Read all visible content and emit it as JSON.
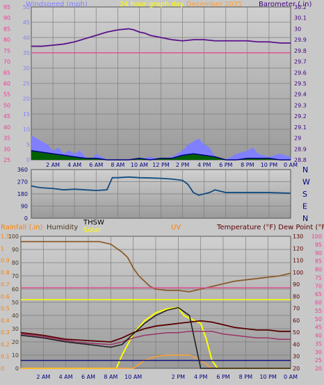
{
  "header": {
    "wind_title": "Windspeed (mph)",
    "period_title": "24 hour graph day",
    "date_title": "December 2025",
    "baro_title": "Barometer (.in)"
  },
  "colors": {
    "background": "#c8c8c8",
    "plot_top": "#d0d0d0",
    "plot_bottom": "#9a9a9a",
    "grid": "#7d7d7d",
    "pink_axis": "#ff3399",
    "purple_axis": "#400080",
    "navy_axis": "#000080",
    "orange_axis": "#ff8000",
    "yellow_label": "#ffff00",
    "wind_speed": "#8080ff",
    "wind_gust_fill": "#006000",
    "wind_avg": "#000080",
    "barometer": "#5a108a",
    "wind_dir": "#104a80",
    "humidity": "#8b5a2b",
    "temperature": "#5a0000",
    "dew_point": "#993366",
    "solar": "#ffff00",
    "uv": "#ffa030",
    "thsw": "#1a1a1a",
    "rain": "#101080",
    "flat_pink": "#e05090"
  },
  "chart_data": [
    {
      "type": "line",
      "name": "wind-barometer",
      "x_ticks": [
        "2 AM",
        "4 AM",
        "6 AM",
        "8 AM",
        "10 AM",
        "12 PM",
        "2 PM",
        "4 PM",
        "6 PM",
        "8 PM",
        "10 PM",
        "0 AM"
      ],
      "left_axis_label": "Windspeed (mph)",
      "left_ticks_mph": [
        "50",
        "45",
        "40",
        "35",
        "30",
        "25",
        "20",
        "15",
        "10",
        "5",
        "0"
      ],
      "left_ticks_kmh": [
        "95",
        "90",
        "85",
        "80",
        "75",
        "70",
        "65",
        "60",
        "55",
        "50",
        "45",
        "40",
        "35",
        "30",
        "25"
      ],
      "ylim_wind": [
        0,
        50
      ],
      "right_axis_label": "Barometer (.in)",
      "right_ticks": [
        "30.2",
        "30.1",
        "30",
        "29.9",
        "29.8",
        "29.7",
        "29.6",
        "29.5",
        "29.4",
        "29.3",
        "29.2",
        "29.1",
        "29",
        "28.9",
        "28.8"
      ],
      "ylim_baro": [
        28.8,
        30.2
      ],
      "series": [
        {
          "key": "barometer",
          "axis": "right",
          "x": [
            0,
            1,
            2,
            3,
            4,
            5,
            6,
            7,
            8,
            9,
            9.5,
            10,
            10.5,
            11,
            12,
            13,
            14,
            15,
            16,
            17,
            18,
            19,
            20,
            21,
            22,
            23,
            24
          ],
          "y": [
            29.84,
            29.84,
            29.85,
            29.86,
            29.88,
            29.91,
            29.94,
            29.97,
            29.99,
            30.0,
            29.99,
            29.97,
            29.96,
            29.94,
            29.92,
            29.9,
            29.89,
            29.9,
            29.9,
            29.89,
            29.89,
            29.89,
            29.89,
            29.88,
            29.88,
            29.87,
            29.87
          ]
        },
        {
          "key": "flat_pink",
          "axis": "right",
          "x": [
            0,
            24
          ],
          "y": [
            29.78,
            29.78
          ]
        },
        {
          "key": "wind_speed",
          "axis": "left",
          "x": [
            0,
            0.5,
            1,
            1.5,
            2,
            2.5,
            3,
            3.5,
            4,
            4.5,
            5,
            5.5,
            6,
            6.5,
            7,
            8,
            9,
            10,
            11,
            12,
            13,
            14,
            14.5,
            15,
            15.5,
            16,
            16.5,
            17,
            18,
            19,
            20,
            20.5,
            21,
            22,
            23,
            24
          ],
          "y": [
            8,
            7,
            6,
            5,
            3,
            4,
            2,
            3,
            2,
            3,
            1,
            0,
            2,
            1,
            0,
            0,
            0,
            0,
            1,
            0,
            1,
            3,
            5,
            6,
            7,
            5,
            4,
            1,
            0,
            2,
            3,
            4,
            2,
            1,
            2,
            1
          ]
        },
        {
          "key": "wind_avg",
          "axis": "left",
          "x": [
            0,
            1,
            2,
            3,
            4,
            5,
            6,
            7,
            8,
            9,
            10,
            11,
            12,
            13,
            14,
            15,
            16,
            17,
            18,
            19,
            20,
            21,
            22,
            23,
            24
          ],
          "y": [
            3,
            2.5,
            2,
            1.5,
            1,
            0.5,
            0.5,
            0,
            0,
            0,
            0.5,
            0,
            0.5,
            0.5,
            1.5,
            2,
            1.5,
            1,
            0,
            0,
            0.5,
            0.5,
            0.5,
            0,
            0
          ]
        }
      ]
    },
    {
      "type": "line",
      "name": "wind-direction",
      "left_ticks": [
        "360",
        "270",
        "180",
        "90",
        "0"
      ],
      "ylim": [
        0,
        360
      ],
      "right_ticks": [
        "N",
        "W",
        "S",
        "E",
        "N"
      ],
      "x_ticks": [],
      "series": [
        {
          "key": "wind_dir",
          "x": [
            0,
            0.5,
            1,
            2,
            3,
            4,
            5,
            6,
            7,
            7.5,
            8,
            9,
            10,
            11,
            12,
            13,
            14,
            14.5,
            15,
            15.5,
            16,
            16.5,
            17,
            17.5,
            18,
            20,
            22,
            24
          ],
          "y": [
            240,
            230,
            225,
            220,
            210,
            215,
            210,
            205,
            210,
            300,
            300,
            305,
            300,
            298,
            295,
            290,
            280,
            250,
            190,
            170,
            180,
            190,
            210,
            200,
            190,
            190,
            190,
            185
          ]
        }
      ]
    },
    {
      "type": "line",
      "name": "weather-lower",
      "labels": {
        "rain": "Rainfall (.in)",
        "humidity": "Humidity",
        "thsw": "THSW",
        "solar": "Solar",
        "uv": "UV",
        "temp": "Temperature (°F) Dew Point (°F)"
      },
      "x_ticks": [
        "2 AM",
        "4 AM",
        "6 AM",
        "8 AM",
        "10 AM",
        "2 PM",
        "4 PM",
        "6 PM",
        "8 PM",
        "10 PM",
        "0 AM"
      ],
      "left_ticks_hum": [
        "100",
        "90",
        "80",
        "70",
        "60",
        "50",
        "40",
        "30",
        "20",
        "10",
        "0"
      ],
      "left_ticks_rain": [
        "1.1",
        "1",
        "0.9",
        "0.8",
        "0.7",
        "0.6",
        "0.5",
        "0.4",
        "0.3",
        "0.2",
        "0.1",
        "0"
      ],
      "right_ticks_uv": [
        "130",
        "120",
        "110",
        "100",
        "90",
        "80",
        "70",
        "60",
        "50",
        "40",
        "30",
        "20"
      ],
      "right_ticks_temp": [
        "100",
        "95",
        "90",
        "85",
        "80",
        "75",
        "70",
        "65",
        "60",
        "55",
        "50",
        "45",
        "40",
        "35",
        "30",
        "25",
        "20"
      ],
      "ylim_pct": [
        0,
        100
      ],
      "series": [
        {
          "key": "humidity",
          "x": [
            0,
            2,
            4,
            6,
            7,
            8,
            9,
            9.5,
            10,
            10.5,
            11,
            11.5,
            12,
            13,
            14,
            15,
            16,
            17,
            18,
            19,
            20,
            21,
            22,
            23,
            24
          ],
          "y": [
            96,
            96,
            96,
            96,
            96,
            94,
            88,
            84,
            76,
            70,
            66,
            62,
            60,
            59,
            59,
            58,
            60,
            62,
            64,
            66,
            67,
            68,
            69,
            70,
            72
          ]
        },
        {
          "key": "flat_pink",
          "x": [
            0,
            24
          ],
          "y": [
            61,
            61
          ]
        },
        {
          "key": "solar",
          "x": [
            0,
            8.5,
            9,
            10,
            11,
            12,
            13,
            14,
            14.5,
            15,
            15.5,
            16,
            16.5,
            17,
            17.5,
            24
          ],
          "y": [
            0,
            0,
            10,
            26,
            36,
            42,
            45,
            46,
            40,
            38,
            36,
            34,
            22,
            6,
            0,
            0
          ]
        },
        {
          "key": "uv",
          "x": [
            0,
            10,
            11,
            12,
            13,
            14,
            15,
            16,
            16.5,
            17,
            24
          ],
          "y": [
            0,
            0,
            6,
            9,
            10,
            10,
            10,
            6,
            3,
            0,
            0
          ]
        },
        {
          "key": "temperature",
          "x": [
            0,
            2,
            4,
            6,
            8,
            9,
            10,
            11,
            12,
            13,
            14,
            15,
            16,
            17,
            18,
            19,
            20,
            21,
            22,
            23,
            24
          ],
          "y": [
            27,
            25,
            22,
            21,
            20,
            23,
            27,
            30,
            32,
            33,
            34,
            35,
            36,
            35,
            33,
            31,
            30,
            29,
            29,
            28,
            28
          ]
        },
        {
          "key": "dew_point",
          "x": [
            0,
            2,
            4,
            6,
            8,
            9,
            10,
            11,
            12,
            13,
            14,
            15,
            16,
            17,
            18,
            19,
            20,
            21,
            22,
            23,
            24
          ],
          "y": [
            26,
            24,
            21,
            19,
            18,
            20,
            23,
            25,
            26,
            27,
            27,
            28,
            28,
            28,
            26,
            25,
            24,
            23,
            23,
            22,
            22
          ]
        },
        {
          "key": "flat_yellow",
          "x": [
            0,
            24
          ],
          "y": [
            52,
            52
          ]
        },
        {
          "key": "rain",
          "x": [
            0,
            24
          ],
          "y": [
            6,
            6
          ]
        },
        {
          "key": "thsw",
          "x": [
            0,
            2,
            4,
            6,
            8,
            9,
            10,
            11,
            12,
            13,
            14,
            15,
            15.5,
            16,
            24
          ],
          "y": [
            25,
            23,
            20,
            18,
            16,
            18,
            26,
            34,
            40,
            44,
            46,
            40,
            20,
            0,
            0
          ]
        }
      ]
    }
  ]
}
